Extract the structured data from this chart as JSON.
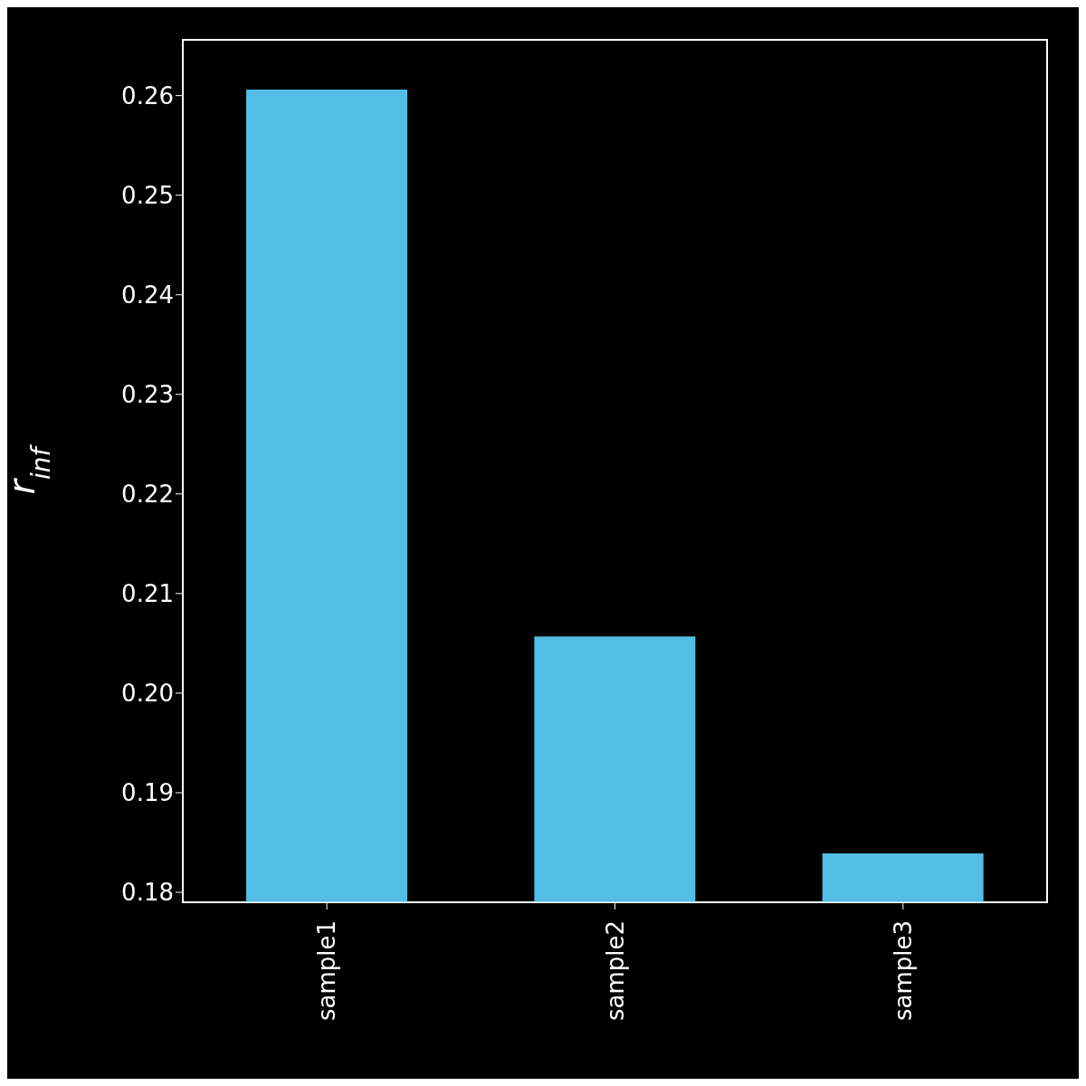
{
  "chart_data": {
    "type": "bar",
    "ylabel": "r$_{inf}$",
    "categories": [
      "sample1",
      "sample2",
      "sample3"
    ],
    "values": [
      0.2606,
      0.2057,
      0.1839
    ],
    "color": "#53bee5",
    "ylim": [
      0.179,
      0.2656
    ],
    "yticks": [
      0.18,
      0.19,
      {
        "value": 0.2,
        "label": "0.20"
      },
      0.21,
      0.22,
      0.23,
      0.24,
      0.25,
      0.26
    ],
    "grid": false,
    "legend": false
  }
}
